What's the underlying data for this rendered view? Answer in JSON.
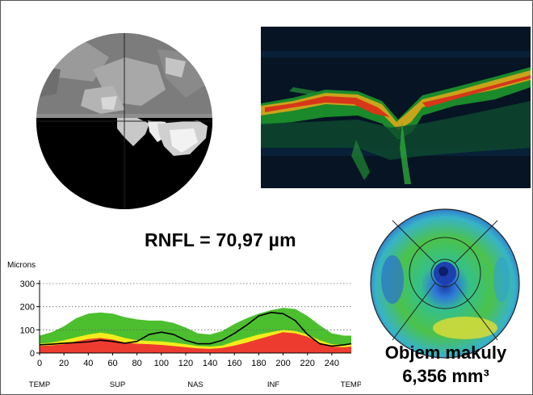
{
  "rnfl_label": "RNFL = 70,97 µm",
  "macula": {
    "volume_label": "Objem makuly",
    "volume_value": "6,356 mm³"
  },
  "chart_data": {
    "type": "area",
    "ylabel": "Microns",
    "ylim": [
      0,
      300
    ],
    "xlim": [
      0,
      256
    ],
    "yticks": [
      0,
      100,
      200,
      300
    ],
    "xticks": [
      0,
      20,
      40,
      60,
      80,
      100,
      120,
      140,
      160,
      180,
      200,
      220,
      240
    ],
    "quadrant_labels": [
      {
        "label": "TEMP",
        "x": 0
      },
      {
        "label": "SUP",
        "x": 64
      },
      {
        "label": "NAS",
        "x": 128
      },
      {
        "label": "INF",
        "x": 192
      },
      {
        "label": "TEMP",
        "x": 256
      }
    ],
    "grid": true,
    "x": [
      0,
      10,
      20,
      30,
      40,
      50,
      60,
      70,
      80,
      90,
      100,
      110,
      120,
      130,
      140,
      150,
      160,
      170,
      180,
      190,
      200,
      210,
      220,
      230,
      240,
      250,
      256
    ],
    "bands": {
      "green_upper": [
        75,
        90,
        115,
        150,
        170,
        175,
        170,
        155,
        145,
        140,
        140,
        130,
        110,
        85,
        80,
        95,
        125,
        150,
        170,
        185,
        195,
        190,
        160,
        120,
        85,
        75,
        75
      ],
      "yellow_upper": [
        40,
        45,
        55,
        68,
        80,
        88,
        80,
        65,
        55,
        52,
        50,
        45,
        38,
        30,
        28,
        32,
        50,
        65,
        80,
        90,
        100,
        95,
        80,
        55,
        38,
        35,
        38
      ],
      "red_upper": [
        30,
        33,
        38,
        50,
        60,
        65,
        58,
        45,
        40,
        38,
        35,
        30,
        25,
        20,
        18,
        22,
        32,
        45,
        60,
        75,
        90,
        85,
        70,
        45,
        28,
        25,
        28
      ]
    },
    "series": [
      {
        "values": [
          35,
          38,
          42,
          45,
          48,
          55,
          50,
          42,
          50,
          80,
          90,
          80,
          55,
          40,
          40,
          55,
          85,
          120,
          160,
          175,
          170,
          140,
          80,
          40,
          30,
          35,
          40
        ]
      }
    ]
  }
}
